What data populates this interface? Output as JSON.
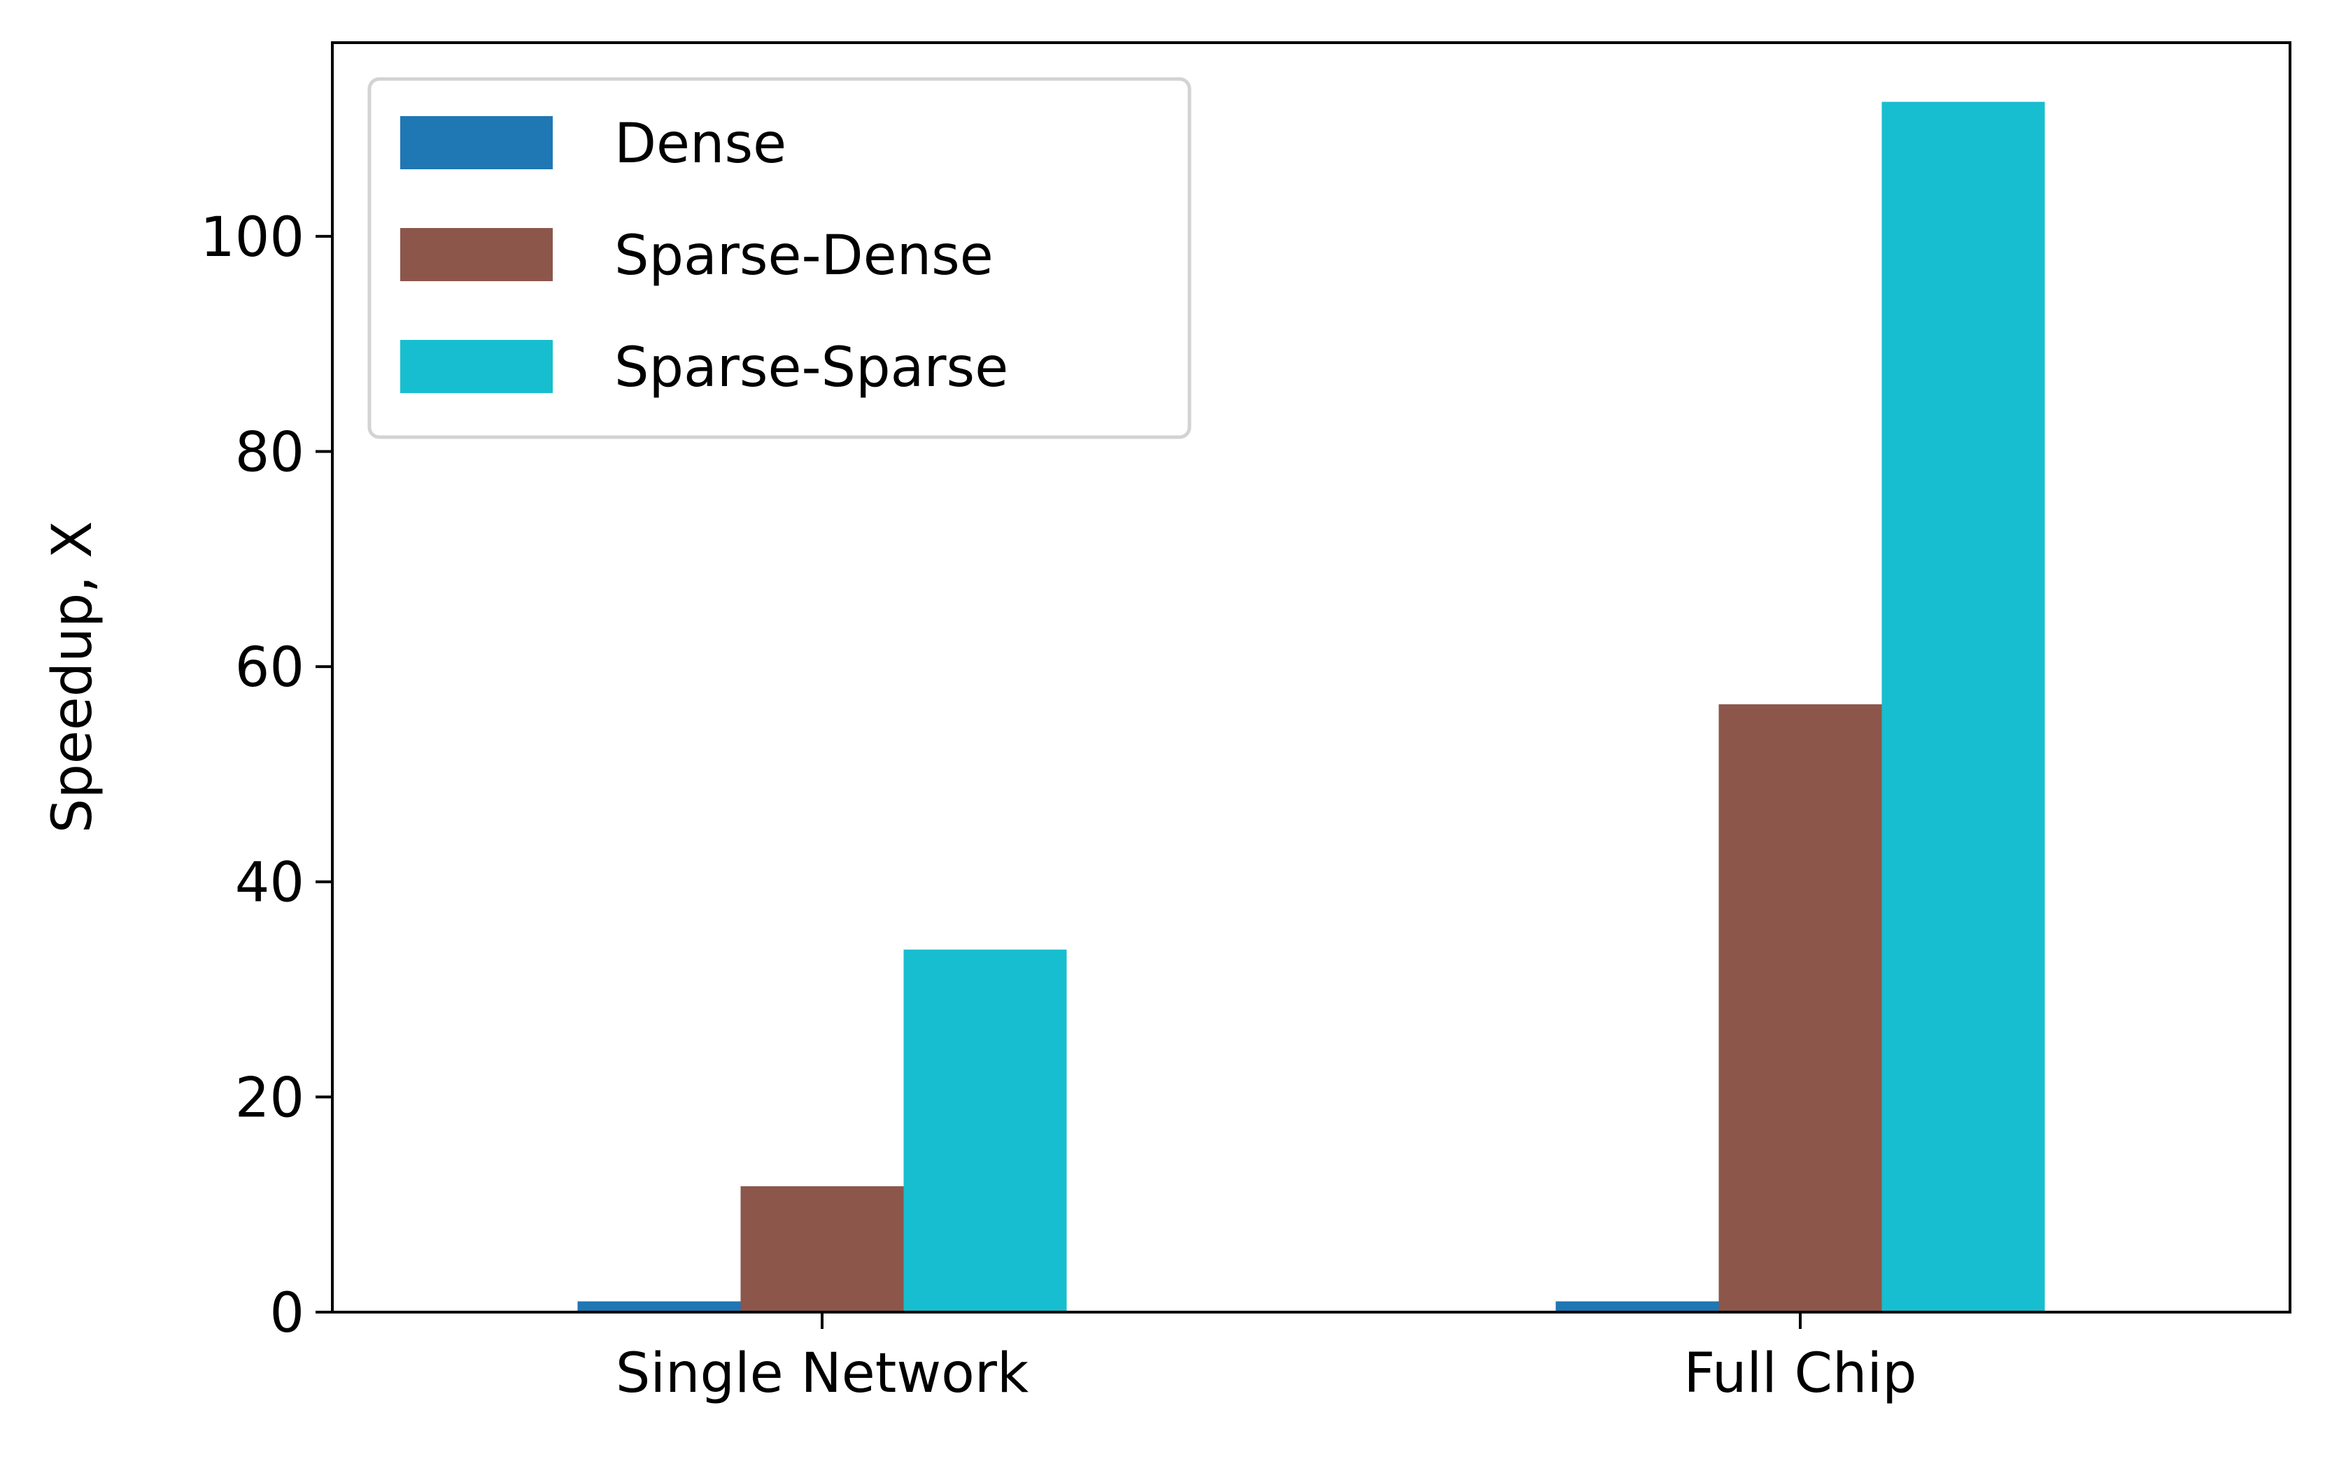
{
  "chart_data": {
    "type": "bar",
    "title": "",
    "xlabel": "",
    "ylabel": "Speedup, X",
    "categories": [
      "Single Network",
      "Full Chip"
    ],
    "series": [
      {
        "name": "Dense",
        "color": "#1f77b4",
        "values": [
          1,
          1
        ]
      },
      {
        "name": "Sparse-Dense",
        "color": "#8c564b",
        "values": [
          11.7,
          56.5
        ]
      },
      {
        "name": "Sparse-Sparse",
        "color": "#17becf",
        "values": [
          33.7,
          112.5
        ]
      }
    ],
    "ylim": [
      0,
      118
    ],
    "yticks": [
      0,
      20,
      40,
      60,
      80,
      100
    ],
    "grid": false,
    "legend_position": "top-left"
  }
}
